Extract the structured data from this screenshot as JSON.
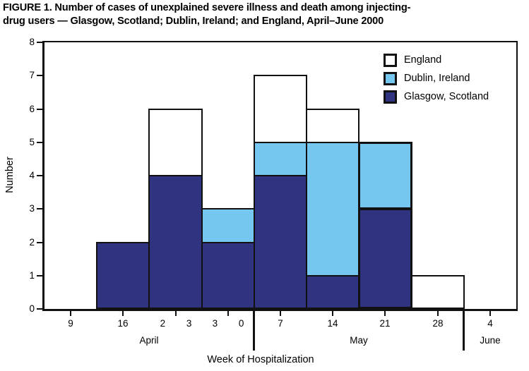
{
  "figure_title": {
    "line1": "FIGURE 1. Number of cases of unexplained severe illness and death among injecting-",
    "line2": "drug users — Glasgow, Scotland; Dublin, Ireland; and England, April–June 2000"
  },
  "colors": {
    "england": "#ffffff",
    "dublin": "#76c7f0",
    "glasgow": "#2f3380",
    "outline": "#111111",
    "background": "#ffffff"
  },
  "chart_data": {
    "type": "bar",
    "stacked": true,
    "title": "FIGURE 1. Number of cases of unexplained severe illness and death among injecting-drug users — Glasgow, Scotland; Dublin, Ireland; and England, April–June 2000",
    "xlabel": "Week of Hospitalization",
    "ylabel": "Number",
    "ylim": [
      0,
      8
    ],
    "y_ticks": [
      0,
      1,
      2,
      3,
      4,
      5,
      6,
      7,
      8
    ],
    "grid": false,
    "categories": [
      "Apr 9",
      "Apr 16",
      "Apr 23",
      "Apr 30",
      "May 7",
      "May 14",
      "May 21",
      "May 28",
      "Jun 4"
    ],
    "x_tick_labels": [
      "9",
      "16",
      "2 3",
      "3 0",
      "7",
      "14",
      "21",
      "28",
      "4"
    ],
    "months": [
      {
        "label": "April",
        "span": [
          0,
          4
        ]
      },
      {
        "label": "May",
        "span": [
          4,
          8
        ]
      },
      {
        "label": "June",
        "span": [
          8,
          9
        ]
      }
    ],
    "series": [
      {
        "name": "Glasgow, Scotland",
        "color": "#2f3380",
        "values": [
          0,
          2,
          4,
          2,
          4,
          1,
          3,
          0,
          0
        ]
      },
      {
        "name": "Dublin, Ireland",
        "color": "#76c7f0",
        "values": [
          0,
          0,
          0,
          1,
          1,
          4,
          2,
          0,
          0
        ]
      },
      {
        "name": "England",
        "color": "#ffffff",
        "values": [
          0,
          0,
          2,
          0,
          2,
          1,
          0,
          1,
          0
        ]
      }
    ],
    "bar_totals": [
      0,
      2,
      6,
      3,
      7,
      6,
      5,
      1,
      0
    ],
    "emphasized_category_index": 6,
    "legend": {
      "position": "top-right",
      "entries": [
        "England",
        "Dublin, Ireland",
        "Glasgow, Scotland"
      ]
    }
  }
}
